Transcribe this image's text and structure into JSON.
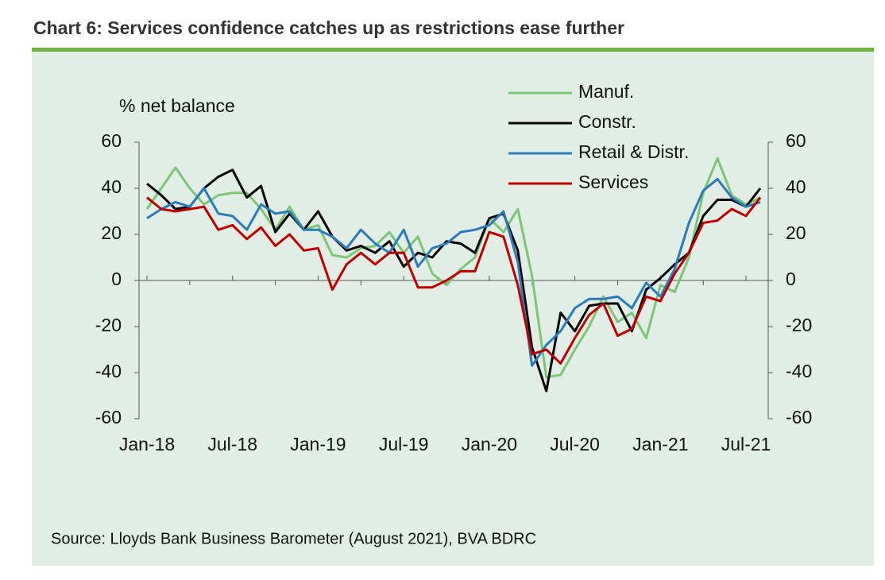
{
  "header": {
    "title": "Chart 6: Services confidence catches up as restrictions ease further"
  },
  "chart_data": {
    "type": "line",
    "y_label": "% net balance",
    "source": "Source: Lloyds Bank Business Barometer (August 2021), BVA BDRC",
    "categories": [
      "Jan-18",
      null,
      null,
      null,
      null,
      null,
      "Jul-18",
      null,
      null,
      null,
      null,
      null,
      "Jan-19",
      null,
      null,
      null,
      null,
      null,
      "Jul-19",
      null,
      null,
      null,
      null,
      null,
      "Jan-20",
      null,
      null,
      null,
      null,
      null,
      "Jul-20",
      null,
      null,
      null,
      null,
      null,
      "Jan-21",
      null,
      null,
      null,
      null,
      null,
      "Jul-21",
      null
    ],
    "series": [
      {
        "name": "Manuf.",
        "color": "#7cc576",
        "values": [
          31,
          40,
          49,
          40,
          33,
          37,
          38,
          38,
          31,
          22,
          32,
          22,
          24,
          11,
          10,
          14,
          15,
          21,
          12,
          19,
          3,
          -2,
          5,
          10,
          27,
          21,
          31,
          2,
          -42,
          -41,
          -30,
          -20,
          -7,
          -18,
          -14,
          -25,
          -2,
          -5,
          10,
          38,
          53,
          37,
          33,
          36
        ]
      },
      {
        "name": "Constr.",
        "color": "#000000",
        "values": [
          42,
          37,
          31,
          32,
          40,
          45,
          48,
          36,
          41,
          21,
          29,
          22,
          30,
          19,
          13,
          15,
          12,
          17,
          6,
          12,
          10,
          17,
          16,
          12,
          27,
          29,
          13,
          -29,
          -48,
          -14,
          -22,
          -11,
          -10,
          -10,
          -22,
          -4,
          1,
          7,
          12,
          28,
          35,
          35,
          32,
          40
        ]
      },
      {
        "name": "Retail & Distr.",
        "color": "#2b7bba",
        "values": [
          27,
          31,
          34,
          32,
          40,
          29,
          28,
          22,
          33,
          29,
          30,
          22,
          22,
          19,
          14,
          22,
          16,
          12,
          22,
          6,
          14,
          16,
          21,
          22,
          24,
          30,
          8,
          -37,
          -28,
          -22,
          -12,
          -8,
          -8,
          -7,
          -12,
          -1,
          -7,
          5,
          25,
          39,
          44,
          36,
          32,
          34
        ]
      },
      {
        "name": "Services",
        "color": "#c00000",
        "values": [
          36,
          31,
          30,
          31,
          32,
          22,
          24,
          18,
          23,
          15,
          20,
          13,
          14,
          -4,
          7,
          12,
          7,
          12,
          12,
          -3,
          -3,
          0,
          4,
          4,
          21,
          19,
          -2,
          -32,
          -30,
          -36,
          -25,
          -15,
          -10,
          -24,
          -21,
          -7,
          -9,
          3,
          12,
          25,
          26,
          31,
          28,
          36
        ]
      }
    ],
    "ylim": [
      -60,
      60
    ],
    "yticks": [
      -60,
      -40,
      -20,
      0,
      20,
      40,
      60
    ],
    "y2lim": [
      -60,
      60
    ],
    "y2ticks": [
      -60,
      -40,
      -20,
      0,
      20,
      40,
      60
    ],
    "legend": "top"
  }
}
